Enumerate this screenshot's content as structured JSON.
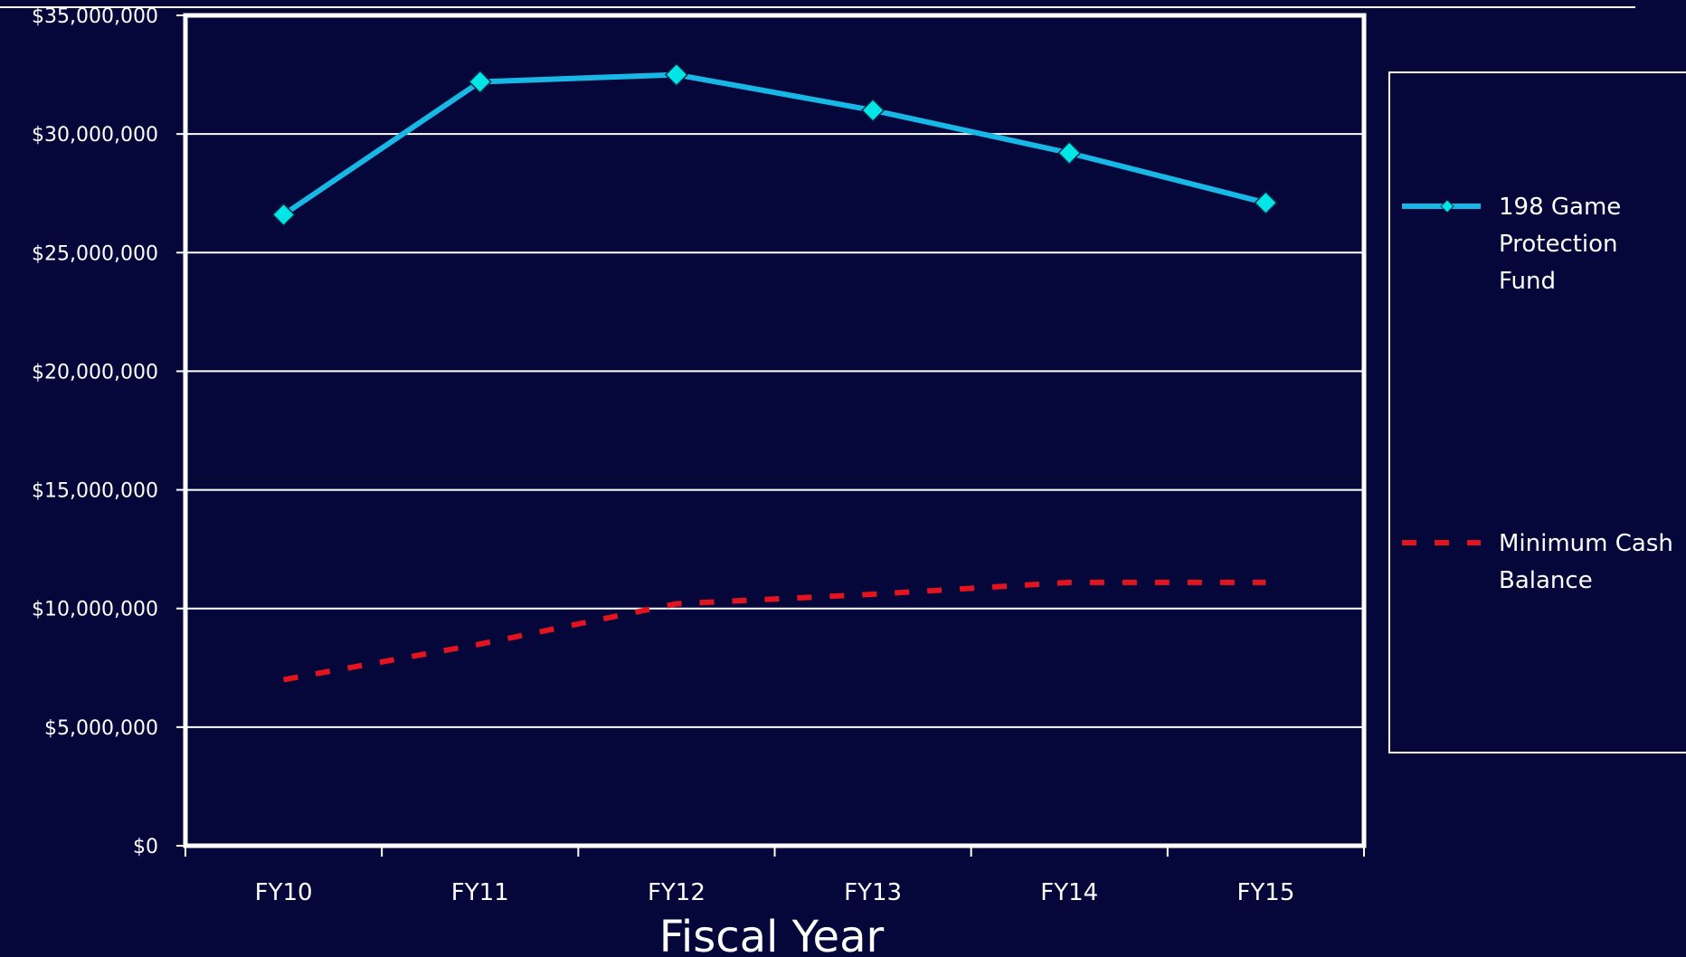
{
  "chart_data": {
    "type": "line",
    "title": "",
    "xlabel": "Fiscal Year",
    "ylabel": "",
    "categories": [
      "FY10",
      "FY11",
      "FY12",
      "FY13",
      "FY14",
      "FY15"
    ],
    "ylim": [
      0,
      35000000
    ],
    "y_ticks": [
      0,
      5000000,
      10000000,
      15000000,
      20000000,
      25000000,
      30000000,
      35000000
    ],
    "y_tick_labels": [
      "$0",
      "$5,000,000",
      "$10,000,000",
      "$15,000,000",
      "$20,000,000",
      "$25,000,000",
      "$30,000,000",
      "$35,000,000"
    ],
    "grid": true,
    "legend_position": "right",
    "series": [
      {
        "name": "198 Game Protection Fund",
        "legend_lines": [
          "198 Game",
          "Protection",
          "Fund"
        ],
        "style": "solid",
        "marker": "diamond",
        "color": "#17b8e6",
        "marker_color": "#00e5e5",
        "values": [
          26600000,
          32200000,
          32500000,
          31000000,
          29200000,
          27100000
        ]
      },
      {
        "name": "Minimum Cash Balance",
        "legend_lines": [
          "Minimum Cash",
          "Balance"
        ],
        "style": "dashed",
        "marker": "none",
        "color": "#e3141d",
        "values": [
          7000000,
          8500000,
          10200000,
          10600000,
          11100000,
          11100000
        ]
      }
    ]
  },
  "colors": {
    "background": "#05073a",
    "frame": "#ffffff",
    "gridline": "#ffffff",
    "text": "#ffffff"
  }
}
